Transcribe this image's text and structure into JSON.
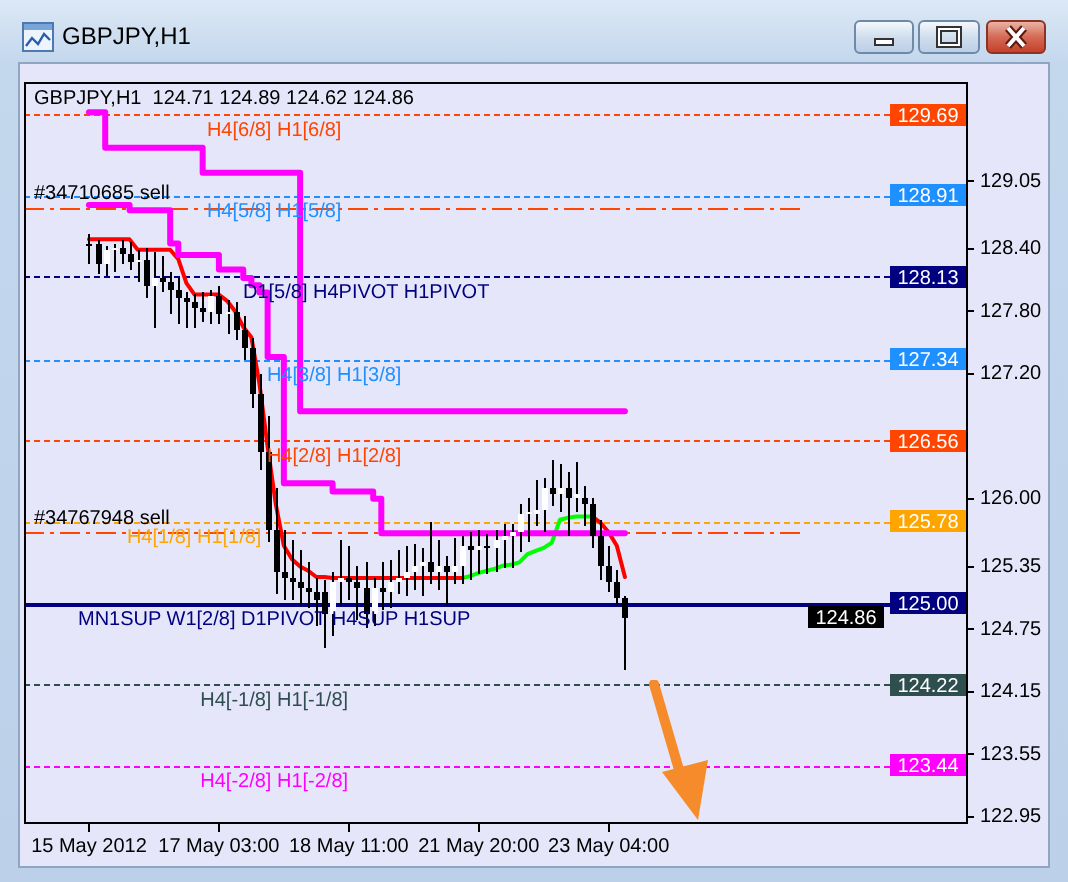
{
  "chart_data": {
    "type": "candlestick",
    "title": "GBPJPY,H1",
    "subtitle": "GBPJPY,H1  124.71 124.89 124.62 124.86",
    "categories": [
      "15 May 2012",
      null,
      null,
      null,
      null,
      null,
      null,
      null,
      null,
      null,
      null,
      null,
      null,
      null,
      null,
      null,
      "17 May 03:00",
      null,
      null,
      null,
      null,
      null,
      null,
      null,
      null,
      null,
      null,
      null,
      null,
      null,
      null,
      null,
      "18 May 11:00",
      null,
      null,
      null,
      null,
      null,
      null,
      null,
      null,
      null,
      null,
      null,
      null,
      null,
      null,
      null,
      "21 May 20:00",
      null,
      null,
      null,
      null,
      null,
      null,
      null,
      null,
      null,
      null,
      null,
      null,
      null,
      null,
      null,
      "23 May 04:00",
      null,
      null
    ],
    "ohlc": [
      [
        128.45,
        128.55,
        128.28,
        128.45
      ],
      [
        128.45,
        128.48,
        128.18,
        128.25
      ],
      [
        128.25,
        128.42,
        128.15,
        128.38
      ],
      [
        128.38,
        128.45,
        128.2,
        128.4
      ],
      [
        128.4,
        128.48,
        128.28,
        128.35
      ],
      [
        128.35,
        128.46,
        128.22,
        128.28
      ],
      [
        128.28,
        128.38,
        128.1,
        128.3
      ],
      [
        128.3,
        128.4,
        127.95,
        128.05
      ],
      [
        128.05,
        128.36,
        127.65,
        128.12
      ],
      [
        128.12,
        128.33,
        128.0,
        128.08
      ],
      [
        128.08,
        128.18,
        127.8,
        128.0
      ],
      [
        128.0,
        128.12,
        127.7,
        127.92
      ],
      [
        127.92,
        127.98,
        127.65,
        127.88
      ],
      [
        127.88,
        127.96,
        127.66,
        127.84
      ],
      [
        127.84,
        127.98,
        127.72,
        127.8
      ],
      [
        127.8,
        128.0,
        127.7,
        127.95
      ],
      [
        127.95,
        128.05,
        127.7,
        127.78
      ],
      [
        127.78,
        127.9,
        127.6,
        127.8
      ],
      [
        127.8,
        127.88,
        127.55,
        127.62
      ],
      [
        127.62,
        127.75,
        127.36,
        127.45
      ],
      [
        127.45,
        127.55,
        126.9,
        127.0
      ],
      [
        127.0,
        127.2,
        126.3,
        126.45
      ],
      [
        126.45,
        126.8,
        125.6,
        125.7
      ],
      [
        125.7,
        126.1,
        125.1,
        125.3
      ],
      [
        125.3,
        125.7,
        125.05,
        125.25
      ],
      [
        125.25,
        125.6,
        125.05,
        125.2
      ],
      [
        125.2,
        125.5,
        125.0,
        125.15
      ],
      [
        125.15,
        125.4,
        124.98,
        125.1
      ],
      [
        125.1,
        125.25,
        124.8,
        125.02
      ],
      [
        125.1,
        125.22,
        124.59,
        124.9
      ],
      [
        124.9,
        125.3,
        124.7,
        125.2
      ],
      [
        125.2,
        125.6,
        125.0,
        125.25
      ],
      [
        125.25,
        125.55,
        125.05,
        125.2
      ],
      [
        125.2,
        125.35,
        124.85,
        125.15
      ],
      [
        125.15,
        125.4,
        124.78,
        124.9
      ],
      [
        124.9,
        125.25,
        124.8,
        125.15
      ],
      [
        125.15,
        125.4,
        124.95,
        125.1
      ],
      [
        125.1,
        125.42,
        124.98,
        125.2
      ],
      [
        125.2,
        125.5,
        125.1,
        125.25
      ],
      [
        125.25,
        125.55,
        125.08,
        125.3
      ],
      [
        125.3,
        125.57,
        125.15,
        125.35
      ],
      [
        125.35,
        125.52,
        125.08,
        125.4
      ],
      [
        125.4,
        125.77,
        125.2,
        125.3
      ],
      [
        125.3,
        125.6,
        125.15,
        125.35
      ],
      [
        125.35,
        125.45,
        125.0,
        125.3
      ],
      [
        125.3,
        125.62,
        125.2,
        125.35
      ],
      [
        125.35,
        125.65,
        125.2,
        125.55
      ],
      [
        125.55,
        125.68,
        125.25,
        125.5
      ],
      [
        125.5,
        125.7,
        125.3,
        125.55
      ],
      [
        125.55,
        125.66,
        125.3,
        125.52
      ],
      [
        125.52,
        125.7,
        125.32,
        125.6
      ],
      [
        125.6,
        125.75,
        125.36,
        125.65
      ],
      [
        125.65,
        125.76,
        125.35,
        125.68
      ],
      [
        125.68,
        125.95,
        125.5,
        125.85
      ],
      [
        125.85,
        126.0,
        125.6,
        125.88
      ],
      [
        125.85,
        126.19,
        125.75,
        125.9
      ],
      [
        125.9,
        126.2,
        125.7,
        126.1
      ],
      [
        126.1,
        126.38,
        125.95,
        126.05
      ],
      [
        126.05,
        126.34,
        125.9,
        126.1
      ],
      [
        126.1,
        126.25,
        125.66,
        126.0
      ],
      [
        126.0,
        126.36,
        125.9,
        126.04
      ],
      [
        126.0,
        126.13,
        125.76,
        125.95
      ],
      [
        125.95,
        126.0,
        125.55,
        125.65
      ],
      [
        125.65,
        125.8,
        125.25,
        125.35
      ],
      [
        125.35,
        125.55,
        125.13,
        125.2
      ],
      [
        125.2,
        125.32,
        125.0,
        125.05
      ],
      [
        125.05,
        125.06,
        124.38,
        124.86
      ]
    ],
    "color": "#000000",
    "colors": [
      "#000000",
      "#000000",
      "#ffffff",
      "#ffffff",
      "#000000",
      "#000000",
      "#ffffff",
      "#000000",
      "#ffffff",
      "#000000",
      "#000000",
      "#000000",
      "#000000",
      "#000000",
      "#000000",
      "#ffffff",
      "#000000",
      "#ffffff",
      "#000000",
      "#000000",
      "#000000",
      "#000000",
      "#000000",
      "#000000",
      "#000000",
      "#000000",
      "#000000",
      "#000000",
      "#000000",
      "#000000",
      "#ffffff",
      "#ffffff",
      "#000000",
      "#000000",
      "#000000",
      "#ffffff",
      "#000000",
      "#ffffff",
      "#ffffff",
      "#ffffff",
      "#ffffff",
      "#ffffff",
      "#000000",
      "#ffffff",
      "#000000",
      "#ffffff",
      "#ffffff",
      "#000000",
      "#ffffff",
      "#000000",
      "#ffffff",
      "#ffffff",
      "#ffffff",
      "#ffffff",
      "#ffffff",
      "#ffffff",
      "#ffffff",
      "#000000",
      "#ffffff",
      "#000000",
      "#ffffff",
      "#000000",
      "#000000",
      "#000000",
      "#000000",
      "#000000",
      "#000000"
    ],
    "series": [
      {
        "type": "step",
        "color": "#ff00ff",
        "values": [
          129.71,
          129.71,
          129.37,
          129.37,
          129.37,
          129.37,
          129.37,
          129.37,
          129.37,
          129.37,
          129.37,
          129.37,
          129.37,
          129.37,
          129.13,
          129.13,
          129.13,
          129.13,
          129.13,
          129.13,
          129.13,
          129.13,
          129.13,
          129.13,
          129.13,
          129.13,
          126.84,
          126.84,
          126.84,
          126.84,
          126.84,
          126.84,
          126.84,
          126.84,
          126.84,
          126.84,
          126.84,
          126.84,
          126.84,
          126.84,
          126.84,
          126.84,
          126.84,
          126.84,
          126.84,
          126.84,
          126.84,
          126.84,
          126.84,
          126.84,
          126.84,
          126.84,
          126.84,
          126.84,
          126.84,
          126.84,
          126.84,
          126.84,
          126.84,
          126.84,
          126.84,
          126.84,
          126.84,
          126.84,
          126.84,
          126.84,
          126.84
        ]
      },
      {
        "type": "step",
        "color": "#ff00ff",
        "values": [
          128.82,
          128.82,
          128.82,
          128.82,
          128.82,
          128.77,
          128.77,
          128.77,
          128.77,
          128.77,
          128.45,
          128.34,
          128.34,
          128.34,
          128.34,
          128.34,
          128.2,
          128.2,
          128.2,
          128.12,
          128.05,
          127.98,
          127.36,
          127.36,
          126.15,
          126.15,
          126.15,
          126.15,
          126.15,
          126.15,
          126.07,
          126.07,
          126.07,
          126.07,
          126.07,
          126.0,
          125.67,
          125.67,
          125.67,
          125.67,
          125.67,
          125.67,
          125.67,
          125.67,
          125.67,
          125.67,
          125.67,
          125.67,
          125.67,
          125.67,
          125.67,
          125.67,
          125.67,
          125.67,
          125.67,
          125.67,
          125.67,
          125.67,
          125.67,
          125.67,
          125.67,
          125.67,
          125.67,
          125.67,
          125.67,
          125.67,
          125.67
        ]
      },
      {
        "type": "line",
        "color": "#ff0000",
        "values": [
          128.49,
          128.49,
          128.49,
          128.49,
          128.49,
          128.49,
          128.39,
          128.39,
          128.39,
          128.39,
          128.39,
          128.3,
          128.07,
          127.96,
          127.96,
          127.96,
          127.96,
          127.9,
          127.8,
          127.65,
          127.55,
          127.1,
          126.5,
          125.95,
          125.55,
          125.42,
          125.35,
          125.31,
          125.25,
          125.25,
          125.24,
          125.24,
          125.24,
          125.24,
          125.24,
          125.24,
          125.24,
          125.24,
          125.24,
          125.24,
          125.24,
          125.24,
          125.24,
          125.24,
          125.24,
          125.24,
          125.24,
          null,
          null,
          null,
          null,
          null,
          null,
          null,
          null,
          null,
          null,
          null,
          null,
          null,
          null,
          null,
          125.83,
          125.77,
          125.68,
          125.55,
          125.25
        ]
      },
      {
        "type": "line",
        "color": "#00ff00",
        "values": [
          null,
          null,
          null,
          null,
          null,
          null,
          null,
          null,
          null,
          null,
          null,
          null,
          null,
          null,
          null,
          null,
          null,
          null,
          null,
          null,
          null,
          null,
          null,
          null,
          null,
          null,
          null,
          null,
          null,
          null,
          null,
          null,
          null,
          null,
          null,
          null,
          null,
          null,
          null,
          null,
          null,
          null,
          null,
          null,
          null,
          null,
          125.24,
          125.26,
          125.29,
          125.31,
          125.33,
          125.36,
          125.37,
          125.39,
          125.47,
          125.5,
          125.53,
          125.58,
          125.8,
          125.82,
          125.83,
          125.83,
          125.83,
          null,
          null,
          null,
          null
        ]
      }
    ],
    "ylim": [
      122.88,
      130.0
    ],
    "yticks": [
      122.95,
      123.55,
      124.15,
      124.75,
      125.35,
      {
        "value": 126,
        "label": "126.00"
      },
      {
        "value": 127.2,
        "label": "127.20"
      },
      {
        "value": 127.8,
        "label": "127.80"
      },
      {
        "value": 128.4,
        "label": "128.40"
      },
      129.05
    ],
    "ref_lines": [
      {
        "axis": "y",
        "value": 129.69,
        "label": "H4[6/8] H1[6/8]",
        "color": "#ff4500",
        "line_style": "dotted"
      },
      {
        "axis": "y",
        "value": 128.91,
        "label": "H4[5/8] H1[5/8]",
        "color": "#1e90ff",
        "line_style": "dotted"
      },
      {
        "axis": "y",
        "value": 128.8,
        "label": "#34710685 sell",
        "color": "#ff4500",
        "line_style": "dashed"
      },
      {
        "axis": "y",
        "value": 128.13,
        "label": "D1[5/8] H4PIVOT H1PIVOT",
        "color": "#000080",
        "line_style": "dotted"
      },
      {
        "axis": "y",
        "value": 127.34,
        "label": "H4[3/8] H1[3/8]",
        "color": "#1e90ff",
        "line_style": "dotted"
      },
      {
        "axis": "y",
        "value": 126.56,
        "label": "H4[2/8] H1[2/8]",
        "color": "#ff4500",
        "line_style": "dotted"
      },
      {
        "axis": "y",
        "value": 125.78,
        "label": "H4[1/8] H1[1/8]",
        "color": "#ffa500",
        "line_style": "dotted"
      },
      {
        "axis": "y",
        "value": 125.68,
        "label": "#34767948 sell",
        "color": "#ff4500",
        "line_style": "dashed"
      },
      {
        "axis": "y",
        "value": 125.0,
        "label": "MN1SUP W1[2/8] D1PIVOT H4SUP H1SUP",
        "color": "#000080",
        "line_style": "solid"
      },
      {
        "axis": "y",
        "value": 124.22,
        "label": "H4[-1/8] H1[-1/8]",
        "color": "#2f4f4f",
        "line_style": "dotted"
      },
      {
        "axis": "y",
        "value": 123.44,
        "label": "H4[-2/8] H1[-2/8]",
        "color": "#ff00ff",
        "line_style": "dotted"
      }
    ],
    "annotations": [
      {
        "text": "129.69",
        "y": 129.69
      },
      {
        "text": "128.91",
        "y": 128.91
      },
      {
        "text": "128.13",
        "y": 128.13
      },
      {
        "text": "127.34",
        "y": 127.34
      },
      {
        "text": "126.56",
        "y": 126.56
      },
      {
        "text": "125.78",
        "y": 125.78
      },
      {
        "text": "125.00",
        "y": 125.0
      },
      {
        "text": "124.22",
        "y": 124.22
      },
      {
        "text": "123.44",
        "y": 123.44
      },
      "124.86"
    ],
    "grid": false
  }
}
